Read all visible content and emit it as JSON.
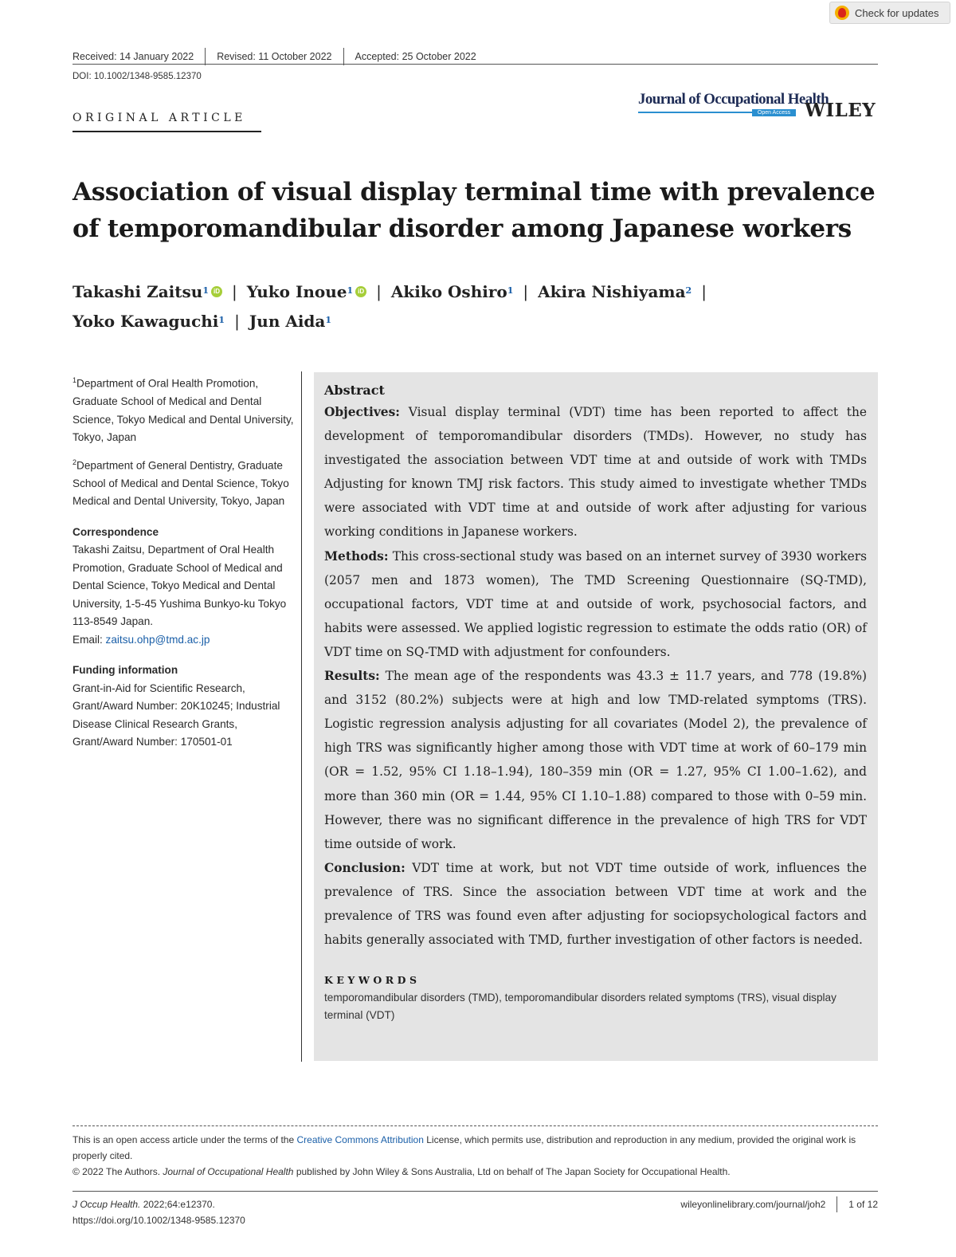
{
  "badge": {
    "label": "Check for updates"
  },
  "header": {
    "received": "Received: 14 January 2022",
    "revised": "Revised: 11 October 2022",
    "accepted": "Accepted: 25 October 2022",
    "doi": "DOI: 10.1002/1348-9585.12370",
    "section": "ORIGINAL ARTICLE",
    "journal": "Journal of Occupational Health",
    "open_access": "Open Access",
    "publisher": "WILEY"
  },
  "title": "Association of visual display terminal time with prevalence of temporomandibular disorder among Japanese workers",
  "authors": [
    {
      "name": "Takashi Zaitsu",
      "aff": "1",
      "orcid": true
    },
    {
      "name": "Yuko Inoue",
      "aff": "1",
      "orcid": true
    },
    {
      "name": "Akiko Oshiro",
      "aff": "1",
      "orcid": false
    },
    {
      "name": "Akira Nishiyama",
      "aff": "2",
      "orcid": false
    },
    {
      "name": "Yoko Kawaguchi",
      "aff": "1",
      "orcid": false
    },
    {
      "name": "Jun Aida",
      "aff": "1",
      "orcid": false
    }
  ],
  "affiliations": [
    {
      "num": "1",
      "text": "Department of Oral Health Promotion, Graduate School of Medical and Dental Science, Tokyo Medical and Dental University, Tokyo, Japan"
    },
    {
      "num": "2",
      "text": "Department of General Dentistry, Graduate School of Medical and Dental Science, Tokyo Medical and Dental University, Tokyo, Japan"
    }
  ],
  "correspondence": {
    "heading": "Correspondence",
    "text": "Takashi Zaitsu, Department of Oral Health Promotion, Graduate School of Medical and Dental Science, Tokyo Medical and Dental University, 1-5-45 Yushima Bunkyo-ku Tokyo 113-8549 Japan.",
    "email_label": "Email: ",
    "email": "zaitsu.ohp@tmd.ac.jp"
  },
  "funding": {
    "heading": "Funding information",
    "text": "Grant-in-Aid for Scientific Research, Grant/Award Number: 20K10245; Industrial Disease Clinical Research Grants, Grant/Award Number: 170501-01"
  },
  "abstract": {
    "heading": "Abstract",
    "objectives_label": "Objectives:",
    "objectives": " Visual display terminal (VDT) time has been reported to affect the development of temporomandibular disorders (TMDs). However, no study has investigated the association between VDT time at and outside of work with TMDs Adjusting for known TMJ risk factors. This study aimed to investigate whether TMDs were associated with VDT time at and outside of work after adjusting for various working conditions in Japanese workers.",
    "methods_label": "Methods:",
    "methods": " This cross-sectional study was based on an internet survey of 3930 workers (2057 men and 1873 women), The TMD Screening Questionnaire (SQ-TMD), occupational factors, VDT time at and outside of work, psychosocial factors, and habits were assessed. We applied logistic regression to estimate the odds ratio (OR) of VDT time on SQ-TMD with adjustment for confounders.",
    "results_label": "Results:",
    "results": " The mean age of the respondents was 43.3 ± 11.7 years, and 778 (19.8%) and 3152 (80.2%) subjects were at high and low TMD-related symptoms (TRS). Logistic regression analysis adjusting for all covariates (Model 2), the prevalence of high TRS was significantly higher among those with VDT time at work of 60–179 min (OR = 1.52, 95% CI 1.18–1.94), 180–359 min (OR = 1.27, 95% CI 1.00–1.62), and more than 360 min (OR = 1.44, 95% CI 1.10–1.88) compared to those with 0–59 min. However, there was no significant difference in the prevalence of high TRS for VDT time outside of work.",
    "conclusion_label": "Conclusion:",
    "conclusion": " VDT time at work, but not VDT time outside of work, influences the prevalence of TRS. Since the association between VDT time at work and the prevalence of TRS was found even after adjusting for sociopsychological factors and habits generally associated with TMD, further investigation of other factors is needed."
  },
  "keywords": {
    "heading": "KEYWORDS",
    "text": "temporomandibular disorders (TMD), temporomandibular disorders related symptoms (TRS), visual display terminal (VDT)"
  },
  "footer": {
    "license_pre": "This is an open access article under the terms of the ",
    "license_link": "Creative Commons Attribution",
    "license_post": " License, which permits use, distribution and reproduction in any medium, provided the original work is properly cited.",
    "copyright_pre": "© 2022 The Authors. ",
    "copyright_journal": "Journal of Occupational Health",
    "copyright_post": " published by John Wiley & Sons Australia, Ltd on behalf of The Japan Society for Occupational Health.",
    "cite_journal": "J Occup Health.",
    "cite_rest": " 2022;64:e12370.",
    "cite_doi": "https://doi.org/10.1002/1348-9585.12370",
    "site": "wileyonlinelibrary.com/journal/joh2",
    "page": "1 of 12"
  }
}
